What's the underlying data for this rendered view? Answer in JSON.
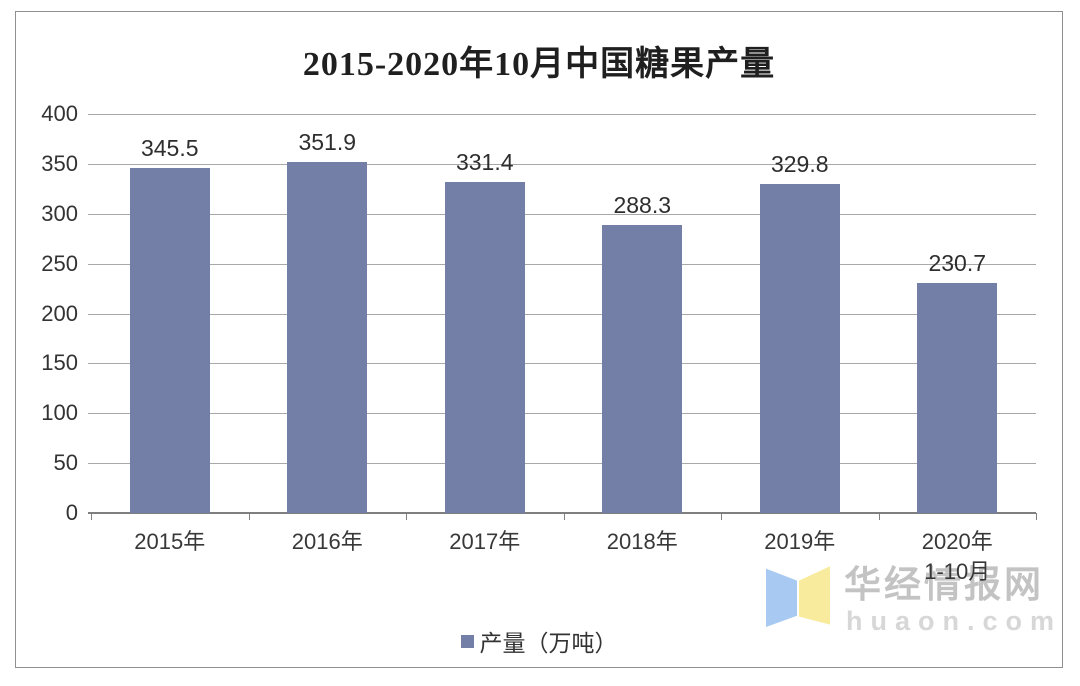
{
  "title": "2015-2020年10月中国糖果产量",
  "chart_data": {
    "type": "bar",
    "title": "2015-2020年10月中国糖果产量",
    "categories": [
      "2015年",
      "2016年",
      "2017年",
      "2018年",
      "2019年",
      "2020年\n1-10月"
    ],
    "series": [
      {
        "name": "产量（万吨）",
        "values": [
          345.5,
          351.9,
          331.4,
          288.3,
          329.8,
          230.7
        ]
      }
    ],
    "values": [
      345.5,
      351.9,
      331.4,
      288.3,
      329.8,
      230.7
    ],
    "value_labels": [
      "345.5",
      "351.9",
      "331.4",
      "288.3",
      "329.8",
      "230.7"
    ],
    "xlabel": "",
    "ylabel": "",
    "ylim": [
      0,
      400
    ],
    "yticks": [
      0,
      50,
      100,
      150,
      200,
      250,
      300,
      350,
      400
    ],
    "grid": true,
    "legend_position": "bottom",
    "bar_color": "#737FA6",
    "gridline_color": "#a8a8a8",
    "axis_color": "#7f7f7f"
  },
  "legend": {
    "label": "产量（万吨）",
    "marker_color": "#737FA6"
  },
  "watermark": {
    "name": "华经情报网",
    "url": "huaon.com",
    "logo_blue": "#A7C9F2",
    "logo_yellow": "#F8EB9D"
  }
}
